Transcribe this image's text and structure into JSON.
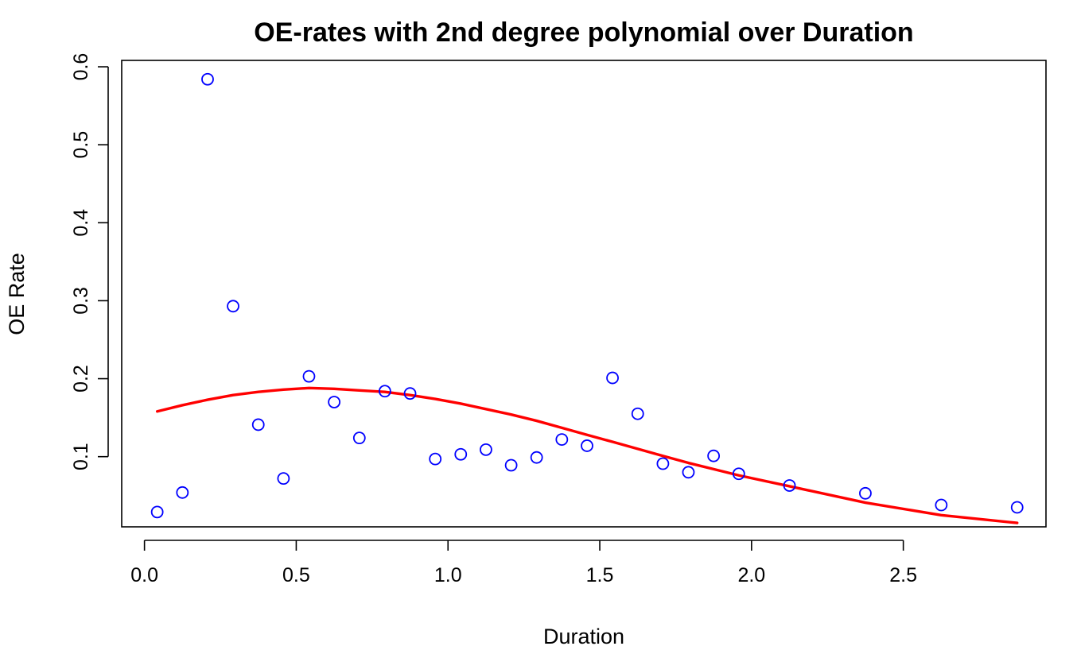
{
  "chart_data": {
    "type": "scatter",
    "title": "OE-rates with 2nd degree polynomial over Duration",
    "xlabel": "Duration",
    "ylabel": "OE Rate",
    "xlim": [
      -0.075,
      2.97
    ],
    "ylim": [
      0.01,
      0.6082
    ],
    "x_ticks": [
      "0.0",
      "0.5",
      "1.0",
      "1.5",
      "2.0",
      "2.5"
    ],
    "x_tick_values": [
      0,
      0.5,
      1.0,
      1.5,
      2.0,
      2.5
    ],
    "y_ticks": [
      "0.1",
      "0.2",
      "0.3",
      "0.4",
      "0.5",
      "0.6"
    ],
    "y_tick_values": [
      0.1,
      0.2,
      0.3,
      0.4,
      0.5,
      0.6
    ],
    "grid": false,
    "colors": {
      "points": "#0000ff",
      "curve": "#ff0000"
    },
    "series": [
      {
        "kind": "points",
        "marker": "open-circle",
        "x": [
          0.042,
          0.125,
          0.208,
          0.292,
          0.375,
          0.458,
          0.542,
          0.625,
          0.708,
          0.792,
          0.875,
          0.958,
          1.042,
          1.125,
          1.208,
          1.292,
          1.375,
          1.458,
          1.542,
          1.625,
          1.708,
          1.792,
          1.875,
          1.958,
          2.125,
          2.375,
          2.625,
          2.875
        ],
        "y": [
          0.029,
          0.054,
          0.584,
          0.293,
          0.141,
          0.072,
          0.203,
          0.17,
          0.124,
          0.184,
          0.181,
          0.097,
          0.103,
          0.109,
          0.089,
          0.099,
          0.122,
          0.114,
          0.201,
          0.155,
          0.091,
          0.08,
          0.101,
          0.078,
          0.063,
          0.053,
          0.038,
          0.035
        ]
      },
      {
        "kind": "line",
        "x": [
          0.042,
          0.125,
          0.208,
          0.292,
          0.375,
          0.458,
          0.542,
          0.625,
          0.708,
          0.792,
          0.875,
          0.958,
          1.042,
          1.125,
          1.208,
          1.292,
          1.375,
          1.458,
          1.542,
          1.625,
          1.708,
          1.792,
          1.875,
          1.958,
          2.125,
          2.375,
          2.625,
          2.875
        ],
        "y": [
          0.158,
          0.166,
          0.173,
          0.179,
          0.183,
          0.186,
          0.188,
          0.187,
          0.185,
          0.183,
          0.179,
          0.174,
          0.168,
          0.161,
          0.154,
          0.146,
          0.137,
          0.128,
          0.119,
          0.11,
          0.101,
          0.092,
          0.084,
          0.076,
          0.062,
          0.041,
          0.025,
          0.015
        ]
      }
    ]
  }
}
